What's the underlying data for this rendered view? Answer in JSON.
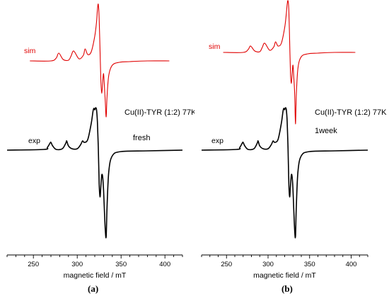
{
  "chart_data": [
    {
      "type": "line",
      "panel_label": "(a)",
      "sample_label": "Cu(II)-TYR (1:2) 77K",
      "condition_label": "fresh",
      "xlabel": "magnetic field / mT",
      "xlim": [
        220,
        420
      ],
      "xticks": [
        250,
        300,
        350,
        400
      ],
      "grid": false,
      "series": [
        {
          "name": "sim",
          "color": "#e00000",
          "baseline": 86,
          "x": [
            246,
            270,
            276,
            279,
            284,
            290,
            293,
            296,
            302,
            307,
            309,
            312,
            316,
            320,
            322,
            323,
            324,
            325,
            326,
            327,
            328,
            329,
            330,
            331,
            332,
            333,
            334,
            336,
            340,
            348,
            360,
            380,
            405
          ],
          "y": [
            0,
            0,
            4,
            11,
            2,
            1,
            7,
            14,
            3,
            8,
            17,
            9,
            13,
            35,
            55,
            72,
            80,
            60,
            15,
            -30,
            -46,
            -30,
            -18,
            -36,
            -58,
            -79,
            -50,
            -20,
            -6,
            -2,
            -1,
            0,
            0
          ]
        },
        {
          "name": "exp",
          "color": "#000000",
          "baseline": 212,
          "x": [
            220,
            262,
            266,
            269,
            270,
            272,
            276,
            283,
            287,
            288,
            290,
            294,
            300,
            304,
            306,
            308,
            312,
            316,
            318,
            319,
            320,
            321,
            322,
            323,
            324,
            325,
            326,
            327,
            328,
            329,
            330,
            331,
            332,
            333,
            334,
            336,
            340,
            350,
            380,
            420
          ],
          "y": [
            0,
            1,
            4,
            10,
            11,
            6,
            1,
            2,
            10,
            13,
            6,
            2,
            2,
            8,
            13,
            11,
            15,
            38,
            55,
            59,
            57,
            60,
            57,
            40,
            5,
            -47,
            -66,
            -50,
            -35,
            -38,
            -56,
            -86,
            -113,
            -122,
            -80,
            -30,
            -8,
            -2,
            -1,
            0
          ]
        }
      ]
    },
    {
      "type": "line",
      "panel_label": "(b)",
      "sample_label": "Cu(II)-TYR (1:2) 77K",
      "condition_label": "1week",
      "xlabel": "magnetic field / mT",
      "xlim": [
        220,
        420
      ],
      "xticks": [
        250,
        300,
        350,
        400
      ],
      "grid": false,
      "series": [
        {
          "name": "sim",
          "color": "#e00000",
          "baseline": 74,
          "x": [
            246,
            270,
            276,
            279,
            284,
            290,
            293,
            296,
            302,
            307,
            309,
            312,
            316,
            320,
            322,
            323,
            324,
            325,
            326,
            327,
            328,
            329,
            330,
            331,
            332,
            333,
            334,
            336,
            340,
            348,
            360,
            380,
            405
          ],
          "y": [
            0,
            0,
            4,
            9,
            2,
            1,
            7,
            13,
            3,
            8,
            15,
            9,
            13,
            35,
            55,
            68,
            73,
            60,
            15,
            -30,
            -44,
            -30,
            -18,
            -36,
            -58,
            -101,
            -60,
            -22,
            -6,
            -2,
            -1,
            0,
            0
          ]
        },
        {
          "name": "exp",
          "color": "#000000",
          "baseline": 212,
          "x": [
            220,
            262,
            266,
            269,
            270,
            272,
            276,
            283,
            287,
            288,
            290,
            294,
            300,
            304,
            306,
            308,
            312,
            316,
            318,
            319,
            320,
            321,
            322,
            323,
            324,
            325,
            326,
            327,
            328,
            329,
            330,
            331,
            332,
            333,
            334,
            336,
            340,
            350,
            380,
            420
          ],
          "y": [
            0,
            1,
            4,
            10,
            11,
            6,
            1,
            2,
            10,
            13,
            6,
            2,
            2,
            8,
            13,
            11,
            15,
            38,
            55,
            59,
            57,
            60,
            57,
            40,
            5,
            -47,
            -66,
            -50,
            -35,
            -38,
            -56,
            -86,
            -113,
            -122,
            -80,
            -30,
            -8,
            -2,
            -1,
            0
          ]
        }
      ]
    }
  ]
}
